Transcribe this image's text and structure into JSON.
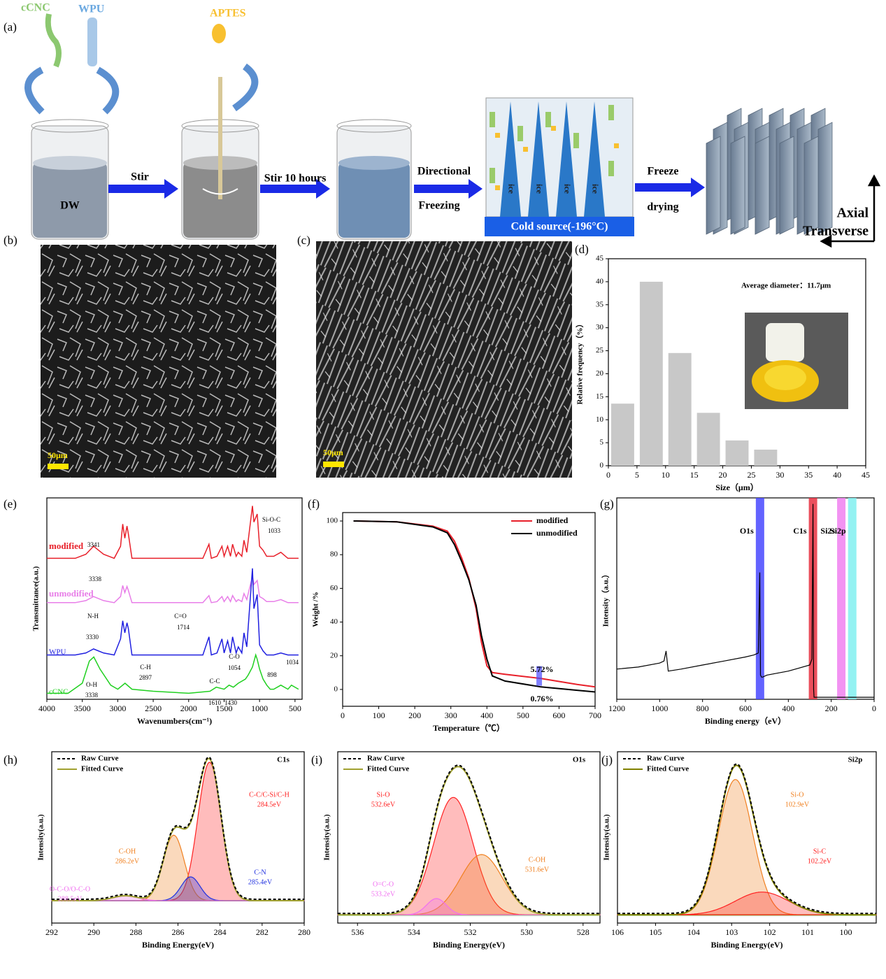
{
  "panel_labels": [
    "(a)",
    "(b)",
    "(c)",
    "(d)",
    "(e)",
    "(f)",
    "(g)",
    "(h)",
    "(i)",
    "(j)"
  ],
  "schematic": {
    "ccnc": "cCNC",
    "wpu": "WPU",
    "aptes": "APTES",
    "dw": "DW",
    "stir": "Stir",
    "stir_10": "Stir  10 hours",
    "directional": "Directional",
    "freezing": "Freezing",
    "ice": [
      "ice",
      "ice",
      "ice",
      "ice"
    ],
    "cold_source": "Cold source(-196°C)",
    "freeze": "Freeze",
    "drying": "drying",
    "axial": "Axial",
    "transverse": "Transverse"
  },
  "sem": {
    "scale_b": "50μm",
    "scale_c": "50μm"
  },
  "chart_data": [
    {
      "type": "histogram",
      "annotation": "Average diameter：11.7μm",
      "xlabel": "Size（μm）",
      "ylabel": "Relative frequency（%）",
      "bins": [
        0,
        5,
        10,
        15,
        20,
        25,
        30
      ],
      "values": [
        13.5,
        40,
        24.5,
        11.5,
        5.5,
        3.5
      ],
      "color": "#c8c8c8",
      "xlim": [
        0,
        45
      ],
      "ylim": [
        0,
        45
      ],
      "xticks": [
        0,
        5,
        10,
        15,
        20,
        25,
        30,
        35,
        40,
        45
      ],
      "yticks": [
        0,
        5,
        10,
        15,
        20,
        25,
        30,
        35,
        40,
        45
      ]
    },
    {
      "type": "spectra",
      "xlabel": "Wavenumbers(cm⁻¹)",
      "ylabel": "Transmittance(a.u.)",
      "xlim": [
        4000,
        400
      ],
      "ylim": [
        0,
        100
      ],
      "xticks": [
        4000,
        3500,
        3000,
        2500,
        2000,
        1500,
        1000,
        500
      ],
      "series": [
        {
          "name": "modified",
          "color": "#e8202a",
          "x": [
            4000,
            3600,
            3450,
            3341,
            3200,
            3050,
            2960,
            2930,
            2900,
            2870,
            2850,
            2800,
            1800,
            1714,
            1680,
            1600,
            1530,
            1500,
            1450,
            1410,
            1380,
            1330,
            1300,
            1250,
            1220,
            1180,
            1100,
            1080,
            1033,
            1000,
            950,
            900,
            800,
            700,
            600,
            450
          ],
          "values": [
            70,
            70,
            72,
            76,
            72,
            70,
            76,
            87,
            80,
            86,
            82,
            70,
            70,
            77,
            70,
            71,
            76,
            71,
            76,
            71,
            77,
            71,
            73,
            71,
            79,
            73,
            96,
            88,
            92,
            76,
            74,
            71,
            71,
            73,
            70,
            70
          ]
        },
        {
          "name": "unmodified",
          "color": "#e87ee8",
          "x": [
            4000,
            3600,
            3450,
            3341,
            3200,
            3050,
            2960,
            2930,
            2900,
            2870,
            2850,
            2800,
            1800,
            1714,
            1680,
            1600,
            1530,
            1500,
            1450,
            1410,
            1380,
            1330,
            1300,
            1250,
            1220,
            1180,
            1100,
            1080,
            1033,
            1000,
            950,
            900,
            800,
            700,
            600,
            450
          ],
          "values": [
            48,
            48,
            49,
            51,
            49,
            48,
            51,
            56.5,
            53,
            56,
            54,
            48,
            48,
            51.5,
            48,
            48.5,
            51,
            48.5,
            51,
            48.5,
            51.5,
            48.5,
            49.5,
            48.5,
            52.5,
            49.5,
            61,
            57,
            59,
            51,
            50,
            48.5,
            48.5,
            49.5,
            48,
            48
          ]
        },
        {
          "name": "WPU",
          "color": "#2020e0",
          "x": [
            4000,
            3600,
            3450,
            3341,
            3200,
            3050,
            2960,
            2930,
            2900,
            2870,
            2850,
            2800,
            1800,
            1714,
            1680,
            1600,
            1530,
            1500,
            1450,
            1410,
            1380,
            1330,
            1300,
            1250,
            1220,
            1180,
            1100,
            1080,
            1033,
            1000,
            950,
            900,
            800,
            700,
            600,
            450
          ],
          "values": [
            22,
            22,
            23,
            25,
            23,
            22,
            30,
            39,
            33,
            38,
            35,
            22,
            22,
            31,
            22,
            23,
            30,
            23,
            29,
            23,
            31,
            23,
            26,
            23,
            33,
            26,
            65,
            45,
            52,
            27,
            24,
            22,
            22,
            23,
            22,
            22
          ]
        },
        {
          "name": "cCNC",
          "color": "#20d020",
          "x": [
            4000,
            3700,
            3500,
            3400,
            3338,
            3250,
            3100,
            3000,
            2897,
            2800,
            2500,
            2000,
            1700,
            1610,
            1500,
            1430,
            1370,
            1300,
            1200,
            1160,
            1100,
            1054,
            1034,
            1000,
            950,
            898,
            850,
            800,
            700,
            600,
            550,
            450
          ],
          "values": [
            3,
            3,
            8,
            19,
            21,
            15,
            7,
            5,
            8,
            5,
            4,
            3,
            4,
            6,
            5,
            7,
            6,
            8,
            10,
            12,
            16,
            22,
            20,
            15,
            10,
            7,
            5,
            5,
            7,
            5,
            7,
            5
          ]
        }
      ],
      "annotations": [
        "3341",
        "Si-O-C",
        "1033",
        "3338",
        "N-H",
        "3330",
        "C=O",
        "1714",
        "C-O",
        "1054",
        "1034",
        "C-H",
        "2897",
        "C-C",
        "1610",
        "1430",
        "898",
        "O-H",
        "3338"
      ]
    },
    {
      "type": "line",
      "xlabel": "Temperature（℃）",
      "ylabel": "Weight /%",
      "xlim": [
        0,
        700
      ],
      "ylim": [
        -10,
        105
      ],
      "xticks": [
        0,
        100,
        200,
        300,
        400,
        500,
        600,
        700
      ],
      "yticks": [
        0,
        20,
        40,
        60,
        80,
        100
      ],
      "legend": "upper right",
      "series": [
        {
          "name": "modified",
          "color": "#e8202a",
          "x": [
            30,
            150,
            250,
            290,
            310,
            330,
            350,
            370,
            385,
            400,
            415,
            450,
            550,
            650,
            700
          ],
          "values": [
            100,
            99.5,
            97,
            94,
            88,
            78,
            66,
            48,
            28,
            14,
            10,
            9,
            6.5,
            3,
            1.5
          ]
        },
        {
          "name": "unmodified",
          "color": "#000000",
          "x": [
            30,
            150,
            250,
            290,
            310,
            330,
            350,
            370,
            385,
            400,
            415,
            450,
            550,
            650,
            700
          ],
          "values": [
            100,
            99.5,
            96.5,
            93,
            86,
            76,
            65,
            50,
            32,
            18,
            8,
            5,
            1.5,
            -0.5,
            -1.5
          ]
        }
      ],
      "annotations": [
        "5.72%",
        "0.76%"
      ]
    },
    {
      "type": "xps_survey",
      "xlabel": "Binding energy（eV）",
      "ylabel": "Intensity（a.u.）",
      "xlim": [
        1200,
        0
      ],
      "ylim": [
        0,
        100
      ],
      "xticks": [
        1200,
        1000,
        800,
        600,
        400,
        200,
        0
      ],
      "series": [
        {
          "color": "#000000",
          "x": [
            1200,
            1100,
            1000,
            980,
            970,
            960,
            900,
            800,
            700,
            600,
            560,
            540,
            533,
            530,
            525,
            520,
            500,
            400,
            300,
            290,
            285,
            282,
            280,
            200,
            100,
            0
          ],
          "values": [
            15,
            16,
            18,
            19,
            24,
            14,
            15,
            17,
            19,
            21,
            22,
            23,
            63,
            12,
            11,
            11,
            12,
            14,
            17,
            20,
            97,
            5,
            1,
            1,
            1,
            1
          ]
        }
      ],
      "bands": [
        {
          "label": "O1s",
          "x": 532,
          "color": "#4848ff"
        },
        {
          "label": "C1s",
          "x": 285,
          "color": "#e83040"
        },
        {
          "label": "Si2s",
          "x": 153,
          "color": "#f080f0"
        },
        {
          "label": "Si2p",
          "x": 102,
          "color": "#80f0f0"
        }
      ]
    },
    {
      "type": "xps_fit",
      "title": "C1s",
      "xlabel": "Binding Energy(eV)",
      "ylabel": "Intensity(a.u.)",
      "xlim": [
        292,
        280
      ],
      "ylim": [
        -15,
        100
      ],
      "xticks": [
        292,
        290,
        288,
        286,
        284,
        282,
        280
      ],
      "series": [
        {
          "name": "Raw Curve",
          "color": "#000000"
        },
        {
          "name": "Fitted Curve",
          "color": "#a0a030"
        }
      ],
      "peaks": [
        {
          "name": "C-C/C-Si/C-H",
          "center_label": "284.5eV",
          "center": 284.5,
          "height": 93,
          "sigma": 0.55,
          "color": "#ff2020"
        },
        {
          "name": "C-OH",
          "center_label": "286.2eV",
          "center": 286.2,
          "height": 44,
          "sigma": 0.5,
          "color": "#f08020"
        },
        {
          "name": "C-N",
          "center_label": "285.4eV",
          "center": 285.4,
          "height": 16,
          "sigma": 0.45,
          "color": "#2030e0"
        },
        {
          "name": "O-C-O/O-C-O",
          "center_label": "288.5eV",
          "center": 288.5,
          "height": 3.3,
          "sigma": 0.6,
          "color": "#f070f0"
        }
      ]
    },
    {
      "type": "xps_fit",
      "title": "O1s",
      "xlabel": "Binding Energy(eV)",
      "ylabel": "Intensity(a.u.)",
      "xlim": [
        536.7,
        527.4
      ],
      "ylim": [
        -5,
        100
      ],
      "xticks": [
        536,
        534,
        532,
        530,
        528
      ],
      "series": [
        {
          "name": "Raw Curve",
          "color": "#000000"
        },
        {
          "name": "Fitted Curve",
          "color": "#a0a030"
        }
      ],
      "peaks": [
        {
          "name": "Si-O",
          "center_label": "532.6eV",
          "center": 532.6,
          "height": 72,
          "sigma": 0.7,
          "color": "#ff2020"
        },
        {
          "name": "C-OH",
          "center_label": "531.6eV",
          "center": 531.6,
          "height": 37,
          "sigma": 0.75,
          "color": "#f08020"
        },
        {
          "name": "O=C-O",
          "center_label": "533.2eV",
          "center": 533.2,
          "height": 10,
          "sigma": 0.35,
          "color": "#f070f0"
        }
      ]
    },
    {
      "type": "xps_fit",
      "title": "Si2p",
      "xlabel": "Binding Energy(eV)",
      "ylabel": "Intensity(a.u.)",
      "xlim": [
        106,
        99.2
      ],
      "ylim": [
        -5,
        100
      ],
      "xticks": [
        106,
        105,
        104,
        103,
        102,
        101,
        100
      ],
      "series": [
        {
          "name": "Raw Curve",
          "color": "#000000"
        },
        {
          "name": "Fitted Curve",
          "color": "#808000"
        }
      ],
      "peaks": [
        {
          "name": "Si-O",
          "center_label": "102.9eV",
          "center": 102.9,
          "height": 83,
          "sigma": 0.45,
          "color": "#f08020"
        },
        {
          "name": "Si-C",
          "center_label": "102.2eV",
          "center": 102.2,
          "height": 14,
          "sigma": 0.7,
          "color": "#ff2020"
        }
      ]
    }
  ]
}
